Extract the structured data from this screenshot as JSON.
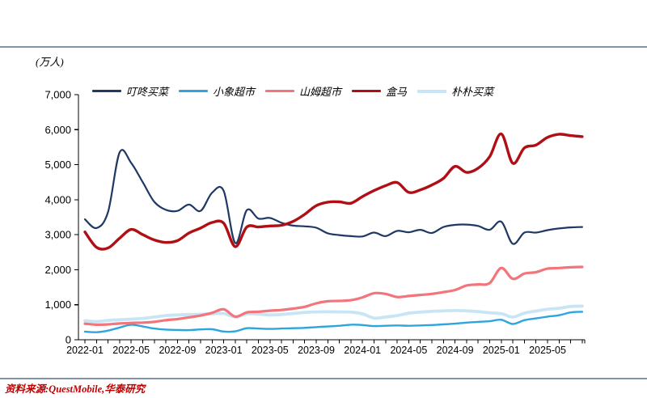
{
  "page": {
    "source_text": "资料来源:QuestMobile,华泰研究"
  },
  "colors": {
    "divider": "#8092AC",
    "source_text": "#C00000",
    "axis": "#000000"
  },
  "chart_data": {
    "type": "line",
    "unit": "(万人)",
    "ylim": [
      0,
      7000
    ],
    "grid": false,
    "legend_position": "top",
    "y_ticks": [
      0,
      1000,
      2000,
      3000,
      4000,
      5000,
      6000,
      7000
    ],
    "y_tick_labels": [
      "0",
      "1,000",
      "2,000",
      "3,000",
      "4,000",
      "5,000",
      "6,000",
      "7,000"
    ],
    "x": [
      "2022-01",
      "2022-02",
      "2022-03",
      "2022-04",
      "2022-05",
      "2022-06",
      "2022-07",
      "2022-08",
      "2022-09",
      "2022-10",
      "2022-11",
      "2022-12",
      "2023-01",
      "2023-02",
      "2023-03",
      "2023-04",
      "2023-05",
      "2023-06",
      "2023-07",
      "2023-08",
      "2023-09",
      "2023-10",
      "2023-11",
      "2023-12",
      "2024-01",
      "2024-02",
      "2024-03",
      "2024-04",
      "2024-05",
      "2024-06",
      "2024-07",
      "2024-08",
      "2024-09",
      "2024-10",
      "2024-11",
      "2024-12",
      "2025-01",
      "2025-02",
      "2025-03",
      "2025-04",
      "2025-05",
      "2025-06",
      "2025-07",
      "2025-08"
    ],
    "x_tick_label_indices": [
      0,
      4,
      8,
      12,
      16,
      20,
      24,
      28,
      32,
      36,
      40
    ],
    "x_tick_labels": [
      "2022-01",
      "2022-05",
      "2022-09",
      "2023-01",
      "2023-05",
      "2023-09",
      "2024-01",
      "2024-05",
      "2024-09",
      "2025-01",
      "2025-05"
    ],
    "series": [
      {
        "name": "叮咚买菜",
        "color": "#1F3864",
        "values": [
          3440,
          3190,
          3650,
          5350,
          5050,
          4500,
          3940,
          3710,
          3680,
          3860,
          3680,
          4200,
          4250,
          2760,
          3700,
          3460,
          3480,
          3340,
          3260,
          3240,
          3200,
          3040,
          2990,
          2960,
          2950,
          3060,
          2960,
          3110,
          3070,
          3140,
          3050,
          3220,
          3280,
          3290,
          3250,
          3140,
          3370,
          2740,
          3060,
          3060,
          3130,
          3180,
          3210,
          3220
        ]
      },
      {
        "name": "小象超市",
        "color": "#2DA5DF",
        "values": [
          230,
          215,
          260,
          350,
          430,
          380,
          320,
          290,
          280,
          275,
          295,
          300,
          235,
          240,
          330,
          320,
          310,
          320,
          330,
          340,
          360,
          380,
          400,
          430,
          420,
          390,
          400,
          410,
          400,
          410,
          420,
          440,
          460,
          490,
          510,
          530,
          570,
          450,
          560,
          610,
          660,
          700,
          780,
          800
        ]
      },
      {
        "name": "山姆超市",
        "color": "#F2757C",
        "values": [
          460,
          430,
          440,
          465,
          480,
          490,
          510,
          560,
          590,
          640,
          690,
          770,
          870,
          660,
          780,
          800,
          830,
          850,
          890,
          940,
          1040,
          1100,
          1110,
          1130,
          1210,
          1330,
          1310,
          1220,
          1250,
          1280,
          1310,
          1360,
          1420,
          1550,
          1580,
          1620,
          2050,
          1740,
          1890,
          1930,
          2030,
          2050,
          2070,
          2080
        ]
      },
      {
        "name": "盒马",
        "color": "#B00F15",
        "values": [
          3080,
          2640,
          2620,
          2900,
          3150,
          3000,
          2850,
          2780,
          2830,
          3050,
          3190,
          3350,
          3330,
          2660,
          3220,
          3220,
          3250,
          3270,
          3380,
          3580,
          3830,
          3930,
          3940,
          3900,
          4090,
          4260,
          4400,
          4490,
          4210,
          4280,
          4420,
          4610,
          4950,
          4780,
          4900,
          5230,
          5880,
          5040,
          5480,
          5560,
          5780,
          5870,
          5830,
          5800
        ]
      },
      {
        "name": "朴朴买菜",
        "color": "#C8E5F6",
        "values": [
          545,
          520,
          555,
          570,
          590,
          610,
          650,
          690,
          710,
          720,
          730,
          740,
          750,
          650,
          740,
          730,
          710,
          720,
          750,
          780,
          795,
          800,
          795,
          790,
          740,
          620,
          650,
          690,
          760,
          790,
          810,
          825,
          835,
          825,
          805,
          770,
          745,
          650,
          760,
          820,
          870,
          900,
          950,
          960
        ]
      }
    ]
  }
}
